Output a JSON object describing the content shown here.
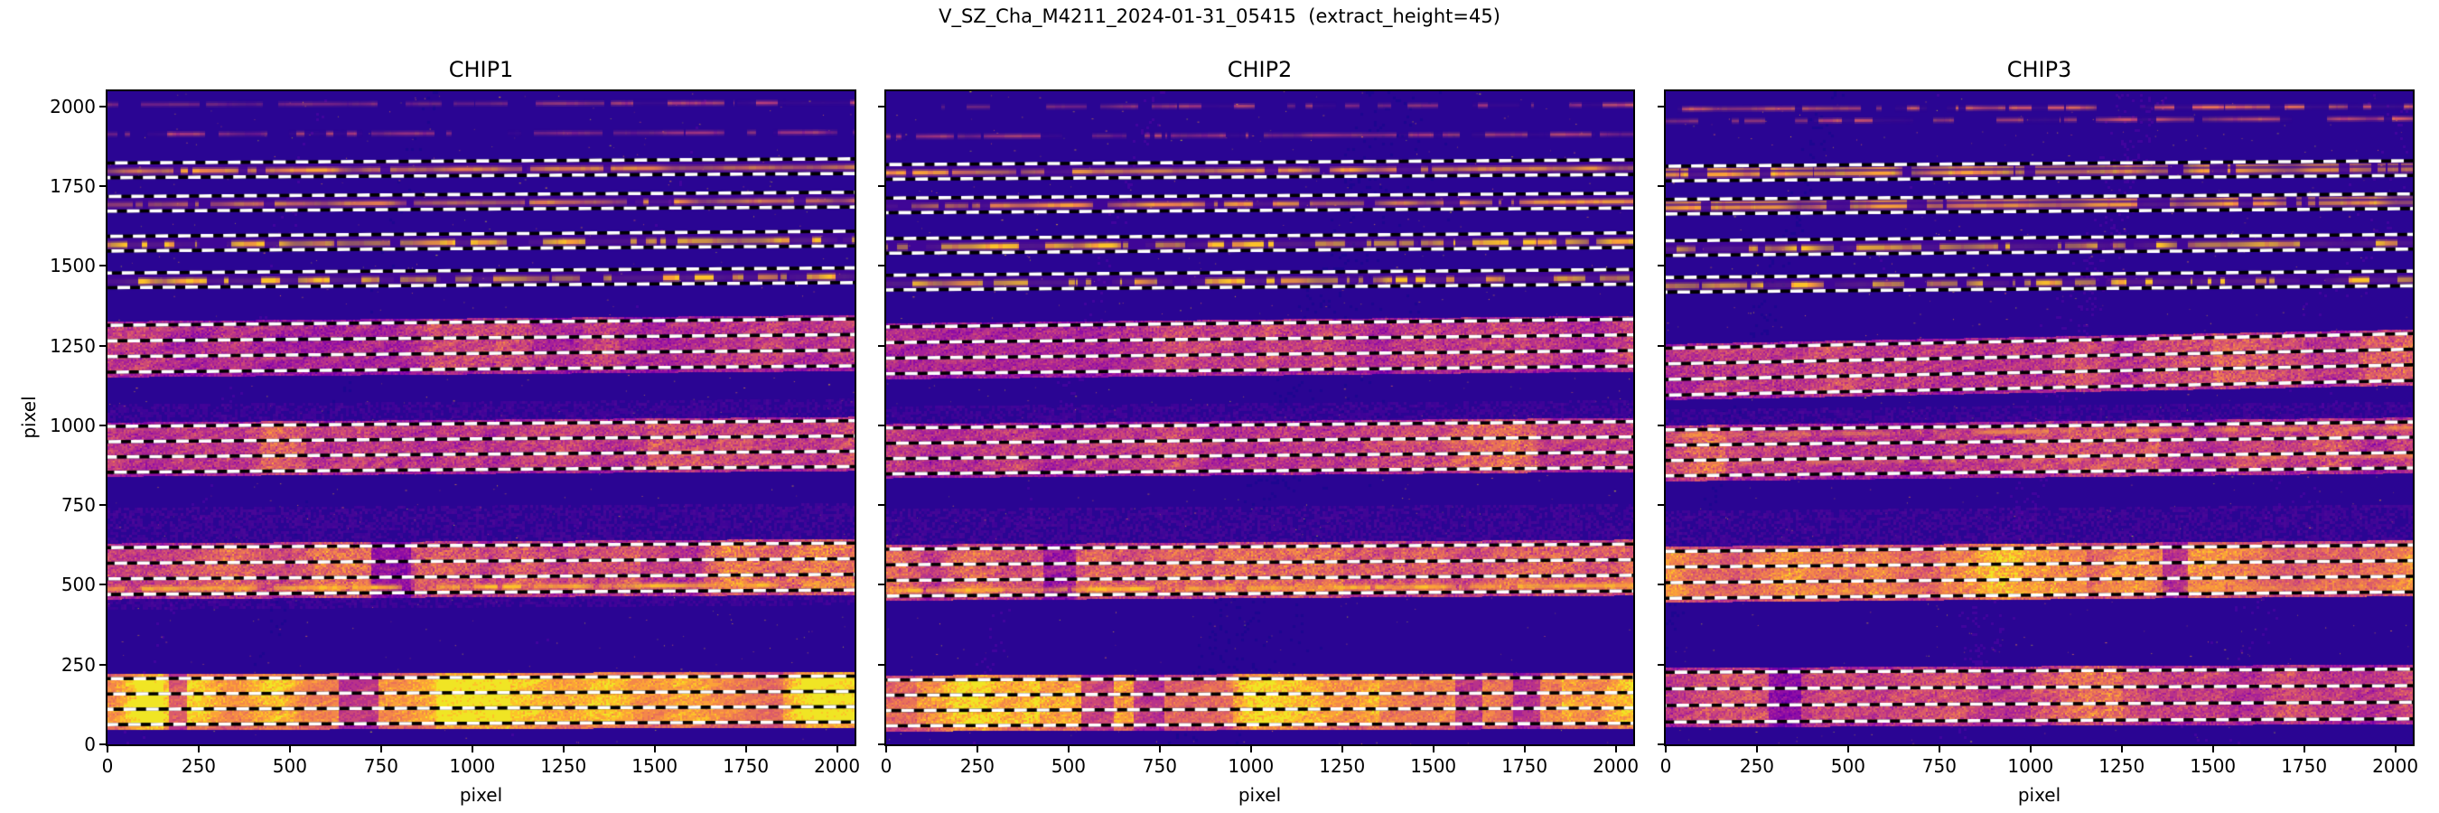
{
  "figure": {
    "suptitle": "V_SZ_Cha_M4211_2024-01-31_05415  (extract_height=45)"
  },
  "chart_data": {
    "type": "heatmap",
    "colormap": "plasma",
    "suptitle": "V_SZ_Cha_M4211_2024-01-31_05415  (extract_height=45)",
    "extract_height": 45,
    "xlabel": "pixel",
    "ylabel": "pixel",
    "xlim": [
      0,
      2048
    ],
    "ylim": [
      0,
      2048
    ],
    "x_ticks": [
      0,
      250,
      500,
      750,
      1000,
      1250,
      1500,
      1750,
      2000
    ],
    "y_ticks": [
      0,
      250,
      500,
      750,
      1000,
      1250,
      1500,
      1750,
      2000
    ],
    "y_tick_labels_visible": [
      true,
      false,
      false
    ],
    "background_color": "#24089a",
    "dashed_line_colors": [
      "#000000",
      "#ffffff"
    ],
    "plasma_ramp": [
      "#1d0690",
      "#2a0593",
      "#41049d",
      "#5c01a6",
      "#7801a8",
      "#8f0da4",
      "#a62098",
      "#b83289",
      "#cc4778",
      "#db5c68",
      "#e97257",
      "#f48849",
      "#fba238",
      "#fdc229",
      "#f0e524"
    ],
    "panels": [
      {
        "title": "CHIP1",
        "seed": 11,
        "top_lines": [
          {
            "y": 2006,
            "slope": 6,
            "v": 0.58,
            "base": 0.85,
            "broken": 0.45,
            "thick": 3,
            "grad": [
              0.45,
              1.15
            ]
          },
          {
            "y": 1913,
            "slope": 6,
            "v": 0.57,
            "base": 0.8,
            "broken": 0.32,
            "thick": 3,
            "grad": [
              1.0,
              0.9
            ]
          }
        ],
        "narrow_orders": [
          {
            "center": 1800,
            "half": 23,
            "slope": 13,
            "line": {
              "y": 1797,
              "v": 0.82,
              "base": 0.95,
              "broken": 0.12,
              "thick": 4
            }
          },
          {
            "center": 1695,
            "half": 23,
            "slope": 13,
            "line": {
              "y": 1692,
              "v": 0.8,
              "base": 0.9,
              "broken": 0.16,
              "thick": 4
            }
          },
          {
            "center": 1570,
            "half": 23,
            "slope": 16,
            "line": {
              "y": 1566,
              "v": 0.9,
              "base": 1.05,
              "broken": 0.45,
              "thick": 5
            }
          },
          {
            "center": 1455,
            "half": 23,
            "slope": 16,
            "line": {
              "y": 1451,
              "v": 0.9,
              "base": 1.05,
              "broken": 0.45,
              "thick": 5
            }
          }
        ],
        "wide_bands": [
          {
            "y0": 1155,
            "y1": 1326,
            "slope": 20,
            "v": 0.5,
            "spread": 0.14,
            "dashes": [
              1167,
              1216,
              1265,
              1314
            ],
            "lines": [
              {
                "y": 1205,
                "v": 0.72,
                "base": 0.35,
                "broken": 0.5,
                "thick": 3
              },
              {
                "y": 1300,
                "v": 0.72,
                "base": 0.3,
                "broken": 0.5,
                "thick": 3
              }
            ],
            "gaps": [],
            "brights": [
              [
                1060,
                1160
              ],
              [
                1300,
                1400
              ],
              [
                1650,
                1850
              ]
            ]
          },
          {
            "y0": 841,
            "y1": 1009,
            "slope": 18,
            "v": 0.52,
            "spread": 0.14,
            "dashes": [
              853,
              901,
              949,
              997
            ],
            "lines": [
              {
                "y": 890,
                "v": 0.75,
                "base": 0.3,
                "broken": 0.55,
                "thick": 3
              },
              {
                "y": 985,
                "v": 0.75,
                "base": 0.3,
                "broken": 0.55,
                "thick": 3
              }
            ],
            "gaps": [],
            "brights": [
              [
                420,
                540
              ],
              [
                900,
                1030
              ],
              [
                1480,
                1620
              ]
            ]
          },
          {
            "y0": 456,
            "y1": 630,
            "slope": 14,
            "v": 0.58,
            "spread": 0.16,
            "dashes": [
              470,
              519,
              568,
              617
            ],
            "lines": [
              {
                "y": 487,
                "v": 0.88,
                "base": 0.95,
                "broken": 0.2,
                "thick": 4
              },
              {
                "y": 545,
                "v": 0.72,
                "base": 0.32,
                "broken": 0.6,
                "thick": 3
              }
            ],
            "gaps": [
              [
                720,
                830
              ]
            ],
            "brights": [
              [
                560,
                720
              ],
              [
                840,
                1020
              ],
              [
                1260,
                1460
              ],
              [
                1630,
                2048
              ]
            ]
          },
          {
            "y0": 48,
            "y1": 220,
            "slope": 8,
            "v": 0.82,
            "spread": 0.1,
            "dashes": [
              62,
              110,
              158,
              206
            ],
            "lines": [],
            "gaps": [
              [
                165,
                215
              ],
              [
                630,
                740
              ]
            ],
            "brights": [
              [
                0,
                150
              ],
              [
                900,
                1100
              ],
              [
                1850,
                2048
              ]
            ]
          }
        ],
        "glows": [
          {
            "y0": 632,
            "y1": 742,
            "slope": 14,
            "v": 0.33
          },
          {
            "y0": 1012,
            "y1": 1066,
            "slope": 18,
            "v": 0.3
          },
          {
            "y0": 428,
            "y1": 456,
            "slope": 14,
            "v": 0.3
          }
        ]
      },
      {
        "title": "CHIP2",
        "seed": 22,
        "top_lines": [
          {
            "y": 1998,
            "slope": 7,
            "v": 0.6,
            "base": 0.9,
            "broken": 0.45,
            "thick": 3,
            "grad": [
              0.35,
              1.15
            ]
          },
          {
            "y": 1906,
            "slope": 7,
            "v": 0.58,
            "base": 0.8,
            "broken": 0.35,
            "thick": 3,
            "grad": [
              0.9,
              1.0
            ]
          }
        ],
        "narrow_orders": [
          {
            "center": 1795,
            "half": 23,
            "slope": 15,
            "line": {
              "y": 1792,
              "v": 0.83,
              "base": 1.0,
              "broken": 0.18,
              "thick": 4
            }
          },
          {
            "center": 1690,
            "half": 23,
            "slope": 15,
            "line": {
              "y": 1687,
              "v": 0.82,
              "base": 0.95,
              "broken": 0.2,
              "thick": 4
            }
          },
          {
            "center": 1563,
            "half": 23,
            "slope": 18,
            "line": {
              "y": 1559,
              "v": 0.9,
              "base": 1.05,
              "broken": 0.4,
              "thick": 5
            }
          },
          {
            "center": 1448,
            "half": 23,
            "slope": 18,
            "line": {
              "y": 1444,
              "v": 0.9,
              "base": 1.05,
              "broken": 0.42,
              "thick": 5
            }
          }
        ],
        "wide_bands": [
          {
            "y0": 1150,
            "y1": 1320,
            "slope": 24,
            "v": 0.5,
            "spread": 0.14,
            "dashes": [
              1162,
              1211,
              1260,
              1309
            ],
            "lines": [
              {
                "y": 1200,
                "v": 0.7,
                "base": 0.3,
                "broken": 0.55,
                "thick": 3
              }
            ],
            "gaps": [],
            "brights": [
              [
                1020,
                1220
              ],
              [
                1380,
                1520
              ]
            ]
          },
          {
            "y0": 836,
            "y1": 1004,
            "slope": 20,
            "v": 0.52,
            "spread": 0.14,
            "dashes": [
              848,
              896,
              944,
              992
            ],
            "lines": [
              {
                "y": 935,
                "v": 0.78,
                "base": 0.45,
                "broken": 0.6,
                "thick": 4
              }
            ],
            "gaps": [],
            "brights": [
              [
                1550,
                1780
              ]
            ]
          },
          {
            "y0": 452,
            "y1": 626,
            "slope": 16,
            "v": 0.6,
            "spread": 0.16,
            "dashes": [
              465,
              514,
              563,
              612
            ],
            "lines": [
              {
                "y": 482,
                "v": 0.88,
                "base": 0.95,
                "broken": 0.25,
                "thick": 4
              },
              {
                "y": 540,
                "v": 0.72,
                "base": 0.35,
                "broken": 0.6,
                "thick": 3
              }
            ],
            "gaps": [
              [
                430,
                520
              ]
            ],
            "brights": [
              [
                0,
                90
              ],
              [
                900,
                1250
              ],
              [
                1300,
                1420
              ]
            ]
          },
          {
            "y0": 44,
            "y1": 216,
            "slope": 8,
            "v": 0.78,
            "spread": 0.12,
            "dashes": [
              58,
              106,
              154,
              202
            ],
            "lines": [],
            "gaps": [
              [
                530,
                620
              ],
              [
                675,
                760
              ],
              [
                1560,
                1630
              ],
              [
                1715,
                1790
              ]
            ],
            "brights": [
              [
                80,
                420
              ],
              [
                950,
                1350
              ],
              [
                1850,
                2048
              ]
            ]
          }
        ],
        "glows": [
          {
            "y0": 628,
            "y1": 738,
            "slope": 16,
            "v": 0.33
          },
          {
            "y0": 1006,
            "y1": 1060,
            "slope": 20,
            "v": 0.3
          }
        ]
      },
      {
        "title": "CHIP3",
        "seed": 33,
        "top_lines": [
          {
            "y": 1992,
            "slope": 8,
            "v": 0.66,
            "base": 0.95,
            "broken": 0.4,
            "thick": 3,
            "grad": [
              0.9,
              1.05
            ]
          },
          {
            "y": 1954,
            "slope": 8,
            "v": 0.63,
            "base": 0.9,
            "broken": 0.5,
            "thick": 3,
            "grad": [
              0.95,
              1.0
            ]
          }
        ],
        "narrow_orders": [
          {
            "center": 1790,
            "half": 23,
            "slope": 17,
            "line": {
              "y": 1786,
              "v": 0.85,
              "base": 1.05,
              "broken": 0.2,
              "thick": 4,
              "double": true
            }
          },
          {
            "center": 1686,
            "half": 23,
            "slope": 17,
            "line": {
              "y": 1682,
              "v": 0.84,
              "base": 1.0,
              "broken": 0.22,
              "thick": 4,
              "double": true
            }
          },
          {
            "center": 1556,
            "half": 23,
            "slope": 20,
            "line": {
              "y": 1552,
              "v": 0.9,
              "base": 1.05,
              "broken": 0.4,
              "thick": 5
            }
          },
          {
            "center": 1441,
            "half": 23,
            "slope": 20,
            "line": {
              "y": 1437,
              "v": 0.9,
              "base": 1.05,
              "broken": 0.42,
              "thick": 5
            }
          }
        ],
        "wide_bands": [
          {
            "y0": 1082,
            "y1": 1255,
            "slope": 46,
            "v": 0.52,
            "spread": 0.15,
            "dashes": [
              1095,
              1144,
              1193,
              1242
            ],
            "lines": [
              {
                "y": 1238,
                "v": 0.68,
                "base": 0.3,
                "broken": 0.5,
                "thick": 3
              }
            ],
            "gaps": [],
            "brights": [
              [
                1500,
                1750
              ],
              [
                1900,
                2048
              ]
            ]
          },
          {
            "y0": 830,
            "y1": 1000,
            "slope": 25,
            "v": 0.54,
            "spread": 0.15,
            "dashes": [
              842,
              890,
              938,
              986
            ],
            "lines": [
              {
                "y": 968,
                "v": 0.82,
                "base": 0.65,
                "broken": 0.45,
                "thick": 4
              },
              {
                "y": 880,
                "v": 0.8,
                "base": 0.55,
                "broken": 0.5,
                "thick": 4
              }
            ],
            "gaps": [],
            "brights": [
              [
                0,
                160
              ],
              [
                1100,
                1350
              ]
            ]
          },
          {
            "y0": 445,
            "y1": 620,
            "slope": 20,
            "v": 0.7,
            "spread": 0.14,
            "dashes": [
              458,
              507,
              556,
              605
            ],
            "lines": [
              {
                "y": 475,
                "v": 0.85,
                "base": 0.6,
                "broken": 0.4,
                "thick": 4
              }
            ],
            "gaps": [
              [
                1360,
                1430
              ]
            ],
            "brights": [
              [
                200,
                500
              ],
              [
                750,
                1150
              ],
              [
                1900,
                2048
              ]
            ]
          },
          {
            "y0": 58,
            "y1": 240,
            "slope": 10,
            "v": 0.55,
            "spread": 0.14,
            "dashes": [
              70,
              122,
              174,
              226
            ],
            "lines": [],
            "gaps": [
              [
                280,
                370
              ]
            ],
            "brights": [
              [
                1000,
                1250
              ]
            ]
          }
        ],
        "glows": [
          {
            "y0": 622,
            "y1": 732,
            "slope": 20,
            "v": 0.33
          },
          {
            "y0": 1002,
            "y1": 1050,
            "slope": 25,
            "v": 0.3
          }
        ]
      }
    ]
  }
}
